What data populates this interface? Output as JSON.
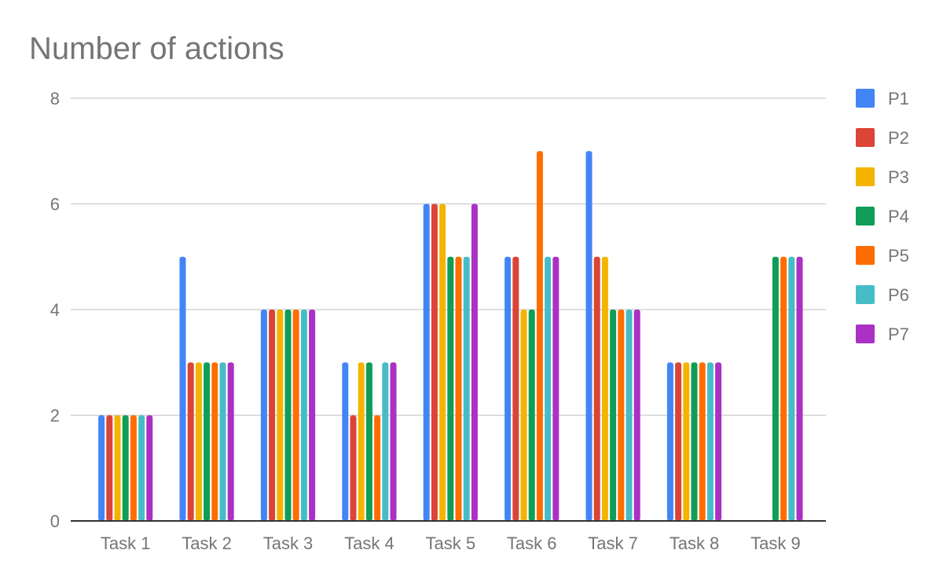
{
  "chart_data": {
    "type": "bar",
    "title": "Number of actions",
    "xlabel": "",
    "ylabel": "",
    "categories": [
      "Task 1",
      "Task 2",
      "Task 3",
      "Task 4",
      "Task 5",
      "Task 6",
      "Task 7",
      "Task 8",
      "Task 9"
    ],
    "series": [
      {
        "name": "P1",
        "color": "#4285f4",
        "values": [
          2,
          5,
          4,
          3,
          6,
          5,
          7,
          3,
          0
        ]
      },
      {
        "name": "P2",
        "color": "#db4437",
        "values": [
          2,
          3,
          4,
          2,
          6,
          5,
          5,
          3,
          0
        ]
      },
      {
        "name": "P3",
        "color": "#f4b400",
        "values": [
          2,
          3,
          4,
          3,
          6,
          4,
          5,
          3,
          0
        ]
      },
      {
        "name": "P4",
        "color": "#0f9d58",
        "values": [
          2,
          3,
          4,
          3,
          5,
          4,
          4,
          3,
          5
        ]
      },
      {
        "name": "P5",
        "color": "#ff6d00",
        "values": [
          2,
          3,
          4,
          2,
          5,
          7,
          4,
          3,
          5
        ]
      },
      {
        "name": "P6",
        "color": "#46bdc6",
        "values": [
          2,
          3,
          4,
          3,
          5,
          5,
          4,
          3,
          5
        ]
      },
      {
        "name": "P7",
        "color": "#ab30c4",
        "values": [
          2,
          3,
          4,
          3,
          6,
          5,
          4,
          3,
          5
        ]
      }
    ],
    "ylim": [
      0,
      8
    ],
    "yticks": [
      0,
      2,
      4,
      6,
      8
    ],
    "grid": true,
    "legend": "right"
  }
}
